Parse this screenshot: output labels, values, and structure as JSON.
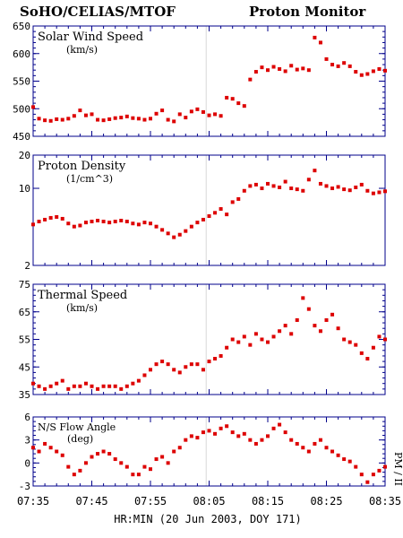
{
  "header": {
    "left": "SoHO/CELIAS/MTOF",
    "right": "Proton Monitor"
  },
  "side_label": "PM / II",
  "colors": {
    "marker": "#dd0000",
    "axis": "#00008b",
    "text": "#000000",
    "event_line": "#d8d8d8"
  },
  "chart_data": [
    {
      "type": "scatter",
      "title": "Solar Wind Speed",
      "unit": "(km/s)",
      "ylim": [
        450,
        650
      ],
      "yticks": [
        450,
        500,
        550,
        600,
        650
      ],
      "scale": "linear",
      "x": [
        0,
        1,
        2,
        3,
        4,
        5,
        6,
        7,
        8,
        9,
        10,
        11,
        12,
        13,
        14,
        15,
        16,
        17,
        18,
        19,
        20,
        21,
        22,
        23,
        24,
        25,
        26,
        27,
        28,
        29,
        30,
        31,
        32,
        33,
        34,
        35,
        36,
        37,
        38,
        39,
        40,
        41,
        42,
        43,
        44,
        45,
        46,
        47,
        48,
        49,
        50,
        51,
        52,
        53,
        54,
        55,
        56,
        57,
        58,
        59,
        60
      ],
      "values": [
        503,
        482,
        479,
        478,
        481,
        480,
        482,
        487,
        497,
        488,
        490,
        480,
        479,
        481,
        483,
        484,
        486,
        483,
        482,
        480,
        482,
        491,
        497,
        480,
        477,
        490,
        484,
        495,
        499,
        494,
        488,
        490,
        487,
        520,
        518,
        510,
        505,
        553,
        567,
        575,
        570,
        576,
        572,
        568,
        578,
        571,
        573,
        570,
        629,
        620,
        590,
        580,
        577,
        583,
        577,
        567,
        561,
        563,
        568,
        572,
        569
      ]
    },
    {
      "type": "scatter",
      "title": "Proton Density",
      "unit": "(1/cm^3)",
      "ylim": [
        2,
        20
      ],
      "yticks": [
        2,
        10,
        20
      ],
      "scale": "log",
      "x": [
        0,
        1,
        2,
        3,
        4,
        5,
        6,
        7,
        8,
        9,
        10,
        11,
        12,
        13,
        14,
        15,
        16,
        17,
        18,
        19,
        20,
        21,
        22,
        23,
        24,
        25,
        26,
        27,
        28,
        29,
        30,
        31,
        32,
        33,
        34,
        35,
        36,
        37,
        38,
        39,
        40,
        41,
        42,
        43,
        44,
        45,
        46,
        47,
        48,
        49,
        50,
        51,
        52,
        53,
        54,
        55,
        56,
        57,
        58,
        59,
        60
      ],
      "values": [
        4.7,
        5.0,
        5.2,
        5.4,
        5.5,
        5.3,
        4.8,
        4.5,
        4.6,
        4.9,
        5.0,
        5.1,
        5.0,
        4.9,
        5.0,
        5.1,
        5.0,
        4.8,
        4.7,
        4.9,
        4.8,
        4.5,
        4.2,
        3.9,
        3.6,
        3.8,
        4.1,
        4.5,
        4.9,
        5.2,
        5.6,
        6.0,
        6.5,
        5.8,
        7.5,
        8.0,
        9.5,
        10.5,
        10.8,
        10.0,
        11.0,
        10.5,
        10.2,
        11.5,
        10.0,
        9.8,
        9.5,
        12.0,
        14.5,
        11.0,
        10.5,
        10.0,
        10.3,
        9.8,
        9.6,
        10.2,
        10.8,
        9.5,
        9.0,
        9.2,
        9.4
      ]
    },
    {
      "type": "scatter",
      "title": "Thermal Speed",
      "unit": "(km/s)",
      "ylim": [
        35,
        75
      ],
      "yticks": [
        35,
        45,
        55,
        65,
        75
      ],
      "scale": "linear",
      "x": [
        0,
        1,
        2,
        3,
        4,
        5,
        6,
        7,
        8,
        9,
        10,
        11,
        12,
        13,
        14,
        15,
        16,
        17,
        18,
        19,
        20,
        21,
        22,
        23,
        24,
        25,
        26,
        27,
        28,
        29,
        30,
        31,
        32,
        33,
        34,
        35,
        36,
        37,
        38,
        39,
        40,
        41,
        42,
        43,
        44,
        45,
        46,
        47,
        48,
        49,
        50,
        51,
        52,
        53,
        54,
        55,
        56,
        57,
        58,
        59,
        60
      ],
      "values": [
        39,
        38,
        37,
        38,
        39,
        40,
        37,
        38,
        38,
        39,
        38,
        37,
        38,
        38,
        38,
        37,
        38,
        39,
        40,
        42,
        44,
        46,
        47,
        46,
        44,
        43,
        45,
        46,
        46,
        44,
        47,
        48,
        49,
        52,
        55,
        54,
        56,
        53,
        57,
        55,
        54,
        56,
        58,
        60,
        57,
        62,
        70,
        66,
        60,
        58,
        62,
        64,
        59,
        55,
        54,
        53,
        50,
        48,
        52,
        56,
        55
      ]
    },
    {
      "type": "scatter",
      "title": "N/S Flow Angle",
      "unit": "(deg)",
      "ylim": [
        -3,
        6
      ],
      "yticks": [
        -3,
        0,
        3,
        6
      ],
      "scale": "linear",
      "x": [
        0,
        1,
        2,
        3,
        4,
        5,
        6,
        7,
        8,
        9,
        10,
        11,
        12,
        13,
        14,
        15,
        16,
        17,
        18,
        19,
        20,
        21,
        22,
        23,
        24,
        25,
        26,
        27,
        28,
        29,
        30,
        31,
        32,
        33,
        34,
        35,
        36,
        37,
        38,
        39,
        40,
        41,
        42,
        43,
        44,
        45,
        46,
        47,
        48,
        49,
        50,
        51,
        52,
        53,
        54,
        55,
        56,
        57,
        58,
        59,
        60
      ],
      "values": [
        2.0,
        1.5,
        2.5,
        2.0,
        1.5,
        1.0,
        -0.5,
        -1.5,
        -1.0,
        0.0,
        0.8,
        1.2,
        1.5,
        1.2,
        0.5,
        0.0,
        -0.5,
        -1.5,
        -1.5,
        -0.5,
        -0.8,
        0.5,
        0.8,
        0.0,
        1.5,
        2.0,
        3.0,
        3.5,
        3.3,
        4.0,
        4.2,
        3.8,
        4.5,
        4.8,
        4.0,
        3.5,
        3.8,
        3.0,
        2.5,
        3.0,
        3.5,
        4.5,
        5.0,
        4.0,
        3.0,
        2.5,
        2.0,
        1.5,
        2.5,
        3.0,
        2.0,
        1.5,
        1.0,
        0.5,
        0.2,
        -0.5,
        -1.5,
        -2.5,
        -1.5,
        -1.0,
        -0.5
      ]
    }
  ],
  "x_axis": {
    "tick_labels": [
      "07:35",
      "07:45",
      "07:55",
      "08:05",
      "08:15",
      "08:25",
      "08:35"
    ],
    "label": "HR:MIN (20 Jun 2003, DOY 171)",
    "range": [
      0,
      60
    ],
    "event_line_at": 29.5
  }
}
